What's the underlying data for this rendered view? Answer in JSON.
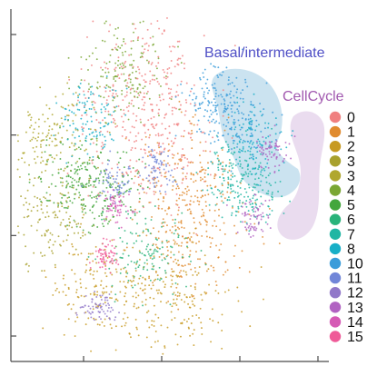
{
  "chart_data": {
    "type": "scatter",
    "title": "",
    "xlabel": "",
    "ylabel": "",
    "grid": false,
    "legend_placement": "right",
    "axis_ticks": {
      "x_tick_count": 4,
      "y_tick_count": 4
    },
    "annotations": [
      {
        "text": "Basal/intermediate",
        "color": "#4f4fc6",
        "highlight_color": "#b7d8ea"
      },
      {
        "text": "CellCycle",
        "color": "#a25ab0",
        "highlight_color": "#e7d6ec"
      }
    ],
    "series": [
      {
        "name": "0",
        "color": "#f08080",
        "clusters": [
          {
            "x": 0.46,
            "y": 0.63
          },
          {
            "x": 0.41,
            "y": 0.78
          }
        ]
      },
      {
        "name": "1",
        "color": "#e08b2f",
        "clusters": [
          {
            "x": 0.56,
            "y": 0.5
          },
          {
            "x": 0.6,
            "y": 0.35
          }
        ]
      },
      {
        "name": "2",
        "color": "#c79a21",
        "clusters": [
          {
            "x": 0.54,
            "y": 0.18
          },
          {
            "x": 0.3,
            "y": 0.22
          }
        ]
      },
      {
        "name": "3",
        "color": "#a8a12d",
        "clusters": [
          {
            "x": 0.13,
            "y": 0.42
          }
        ]
      },
      {
        "name": "3",
        "color": "#b0a72e",
        "clusters": [
          {
            "x": 0.12,
            "y": 0.63
          }
        ]
      },
      {
        "name": "4",
        "color": "#7aa733",
        "clusters": [
          {
            "x": 0.37,
            "y": 0.83
          }
        ]
      },
      {
        "name": "5",
        "color": "#43a63c",
        "clusters": [
          {
            "x": 0.21,
            "y": 0.52
          },
          {
            "x": 0.31,
            "y": 0.48
          }
        ]
      },
      {
        "name": "6",
        "color": "#29b37a",
        "clusters": [
          {
            "x": 0.44,
            "y": 0.31
          }
        ]
      },
      {
        "name": "7",
        "color": "#20b6a3",
        "clusters": [
          {
            "x": 0.73,
            "y": 0.54
          },
          {
            "x": 0.79,
            "y": 0.47
          }
        ]
      },
      {
        "name": "8",
        "color": "#18afc7",
        "clusters": [
          {
            "x": 0.26,
            "y": 0.68
          },
          {
            "x": 0.79,
            "y": 0.63
          }
        ]
      },
      {
        "name": "10",
        "color": "#3a9cda",
        "clusters": [
          {
            "x": 0.66,
            "y": 0.74
          },
          {
            "x": 0.74,
            "y": 0.69
          }
        ]
      },
      {
        "name": "11",
        "color": "#7186d8",
        "clusters": [
          {
            "x": 0.34,
            "y": 0.51
          },
          {
            "x": 0.48,
            "y": 0.55
          }
        ]
      },
      {
        "name": "12",
        "color": "#9178c9",
        "clusters": [
          {
            "x": 0.29,
            "y": 0.15
          }
        ]
      },
      {
        "name": "13",
        "color": "#b163c2",
        "clusters": [
          {
            "x": 0.85,
            "y": 0.6
          },
          {
            "x": 0.79,
            "y": 0.41
          }
        ]
      },
      {
        "name": "14",
        "color": "#d55ab5",
        "clusters": [
          {
            "x": 0.34,
            "y": 0.44
          }
        ]
      },
      {
        "name": "15",
        "color": "#ef5a98",
        "clusters": [
          {
            "x": 0.31,
            "y": 0.3
          }
        ]
      }
    ]
  }
}
